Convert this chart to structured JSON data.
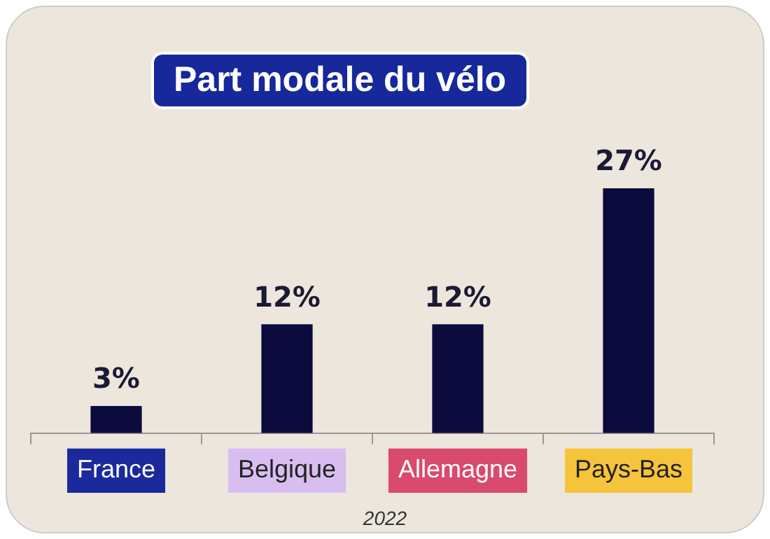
{
  "chart_data": {
    "type": "bar",
    "title": "Part modale du vélo",
    "categories": [
      "France",
      "Belgique",
      "Allemagne",
      "Pays-Bas"
    ],
    "values": [
      3,
      12,
      12,
      27
    ],
    "color": "#0b0b3d",
    "value_labels": [
      "3%",
      "12%",
      "12%",
      "27%"
    ],
    "annotations": [
      "2022"
    ],
    "grid": false,
    "legend": false
  }
}
